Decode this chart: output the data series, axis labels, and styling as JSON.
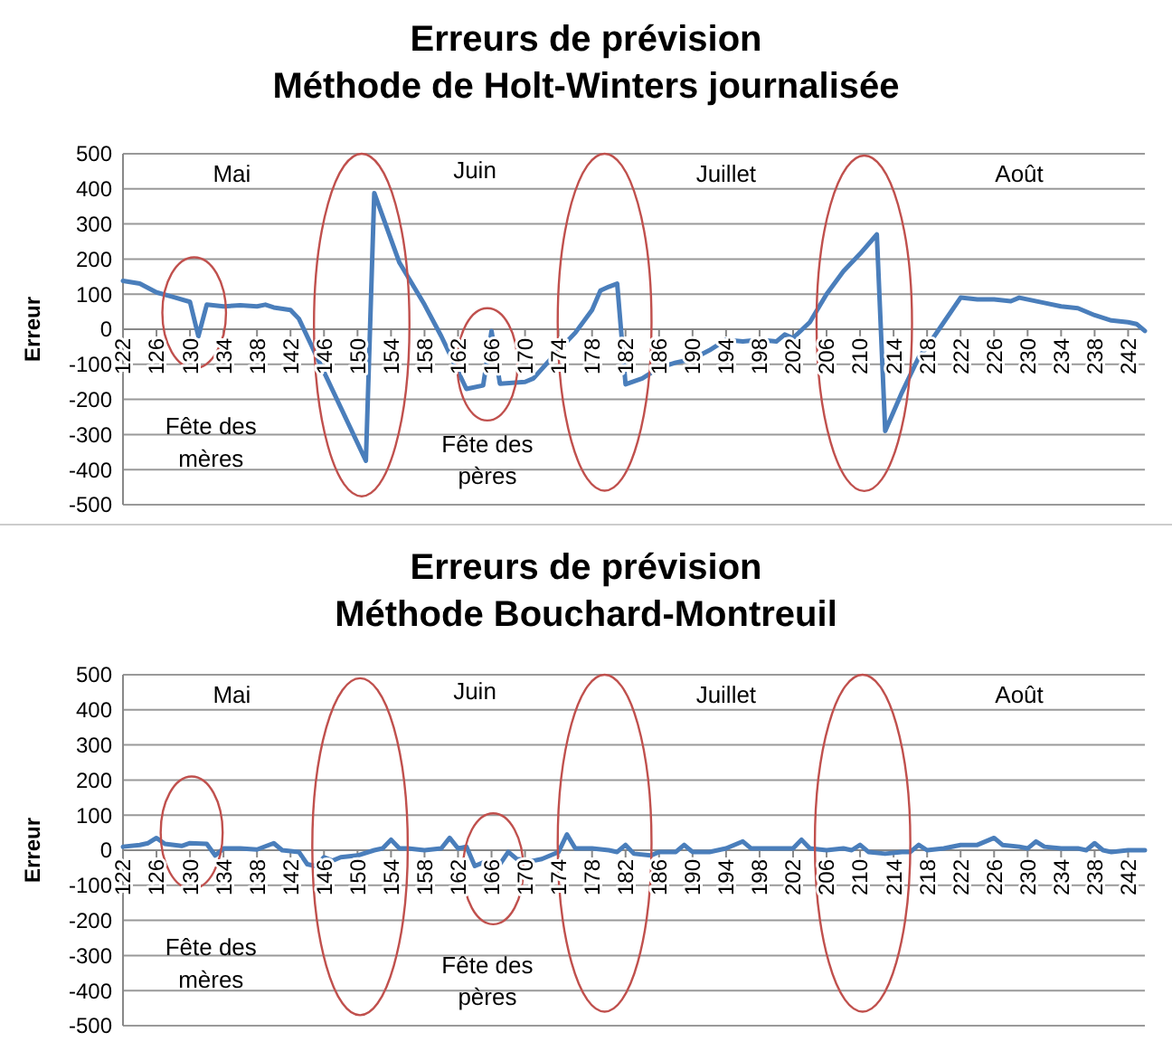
{
  "chart_data": [
    {
      "type": "line",
      "title": "Erreurs de prévision",
      "subtitle": "Méthode de Holt-Winters journalisée",
      "ylabel": "Erreur",
      "xlim": [
        122,
        244
      ],
      "xticks": [
        122,
        126,
        130,
        134,
        138,
        142,
        146,
        150,
        154,
        158,
        162,
        166,
        170,
        174,
        178,
        182,
        186,
        190,
        194,
        198,
        202,
        206,
        210,
        214,
        218,
        222,
        226,
        230,
        234,
        238,
        242
      ],
      "ylim": [
        -500,
        500
      ],
      "yticks": [
        -500,
        -400,
        -300,
        -200,
        -100,
        0,
        100,
        200,
        300,
        400,
        500
      ],
      "grid": "y",
      "marker": "none",
      "line_style": "solid",
      "annotations": [
        "Mai",
        "Juin",
        "Juillet",
        "Août",
        "Fête des mères",
        "Fête des pères"
      ],
      "series": [
        {
          "color": "#4a7ebb",
          "x": [
            122,
            124,
            126,
            128,
            130,
            131,
            132,
            134,
            136,
            138,
            139,
            140,
            142,
            143,
            151,
            152,
            155,
            158,
            160,
            163,
            165,
            166,
            167,
            170,
            171,
            174,
            176,
            178,
            179,
            180,
            181,
            182,
            184,
            186,
            188,
            190,
            192,
            194,
            196,
            198,
            200,
            201,
            202,
            204,
            206,
            208,
            210,
            212,
            213,
            215,
            217,
            218,
            220,
            222,
            224,
            226,
            228,
            229,
            232,
            234,
            236,
            238,
            240,
            242,
            243,
            244
          ],
          "values": [
            138,
            130,
            105,
            92,
            78,
            -20,
            70,
            65,
            68,
            65,
            70,
            62,
            55,
            30,
            -375,
            388,
            190,
            70,
            -20,
            -170,
            -160,
            -5,
            -155,
            -150,
            -140,
            -60,
            -10,
            55,
            110,
            121,
            130,
            -157,
            -140,
            -110,
            -95,
            -85,
            -60,
            -30,
            -35,
            -30,
            -35,
            -15,
            -25,
            20,
            100,
            165,
            215,
            270,
            -290,
            -180,
            -80,
            -50,
            20,
            90,
            85,
            85,
            80,
            90,
            75,
            65,
            60,
            40,
            25,
            20,
            15,
            -5
          ]
        }
      ]
    },
    {
      "type": "line",
      "title": "Erreurs de prévision",
      "subtitle": "Méthode Bouchard-Montreuil",
      "ylabel": "Erreur",
      "xlim": [
        122,
        244
      ],
      "xticks": [
        122,
        126,
        130,
        134,
        138,
        142,
        146,
        150,
        154,
        158,
        162,
        166,
        170,
        174,
        178,
        182,
        186,
        190,
        194,
        198,
        202,
        206,
        210,
        214,
        218,
        222,
        226,
        230,
        234,
        238,
        242
      ],
      "ylim": [
        -500,
        500
      ],
      "yticks": [
        -500,
        -400,
        -300,
        -200,
        -100,
        0,
        100,
        200,
        300,
        400,
        500
      ],
      "grid": "y",
      "marker": "none",
      "line_style": "solid",
      "annotations": [
        "Mai",
        "Juin",
        "Juillet",
        "Août",
        "Fête des mères",
        "Fête des pères"
      ],
      "series": [
        {
          "color": "#4a7ebb",
          "x": [
            122,
            124,
            125,
            126,
            127,
            129,
            130,
            132,
            133,
            134,
            136,
            138,
            140,
            141,
            143,
            144,
            145,
            146,
            147,
            148,
            150,
            152,
            153,
            154,
            155,
            156,
            158,
            160,
            161,
            162,
            163,
            164,
            165,
            166,
            167,
            168,
            169,
            171,
            172,
            174,
            175,
            176,
            178,
            180,
            181,
            182,
            183,
            185,
            186,
            188,
            189,
            190,
            192,
            194,
            196,
            197,
            199,
            201,
            202,
            203,
            204,
            206,
            208,
            209,
            210,
            211,
            213,
            215,
            216,
            217,
            218,
            220,
            222,
            224,
            226,
            227,
            229,
            230,
            231,
            232,
            234,
            236,
            237,
            238,
            239,
            240,
            242,
            244
          ],
          "values": [
            10,
            15,
            20,
            35,
            18,
            12,
            20,
            18,
            -15,
            5,
            5,
            2,
            20,
            0,
            -5,
            -40,
            -45,
            -20,
            -30,
            -20,
            -15,
            0,
            5,
            30,
            5,
            5,
            0,
            5,
            35,
            5,
            10,
            -45,
            -35,
            -35,
            -40,
            -5,
            -25,
            -30,
            -25,
            -5,
            45,
            5,
            5,
            0,
            -5,
            15,
            -10,
            -15,
            -5,
            -5,
            15,
            -5,
            -5,
            5,
            25,
            5,
            5,
            5,
            5,
            30,
            5,
            0,
            5,
            0,
            15,
            -5,
            -10,
            -5,
            -5,
            15,
            0,
            5,
            15,
            15,
            35,
            15,
            10,
            5,
            25,
            10,
            5,
            5,
            0,
            20,
            0,
            -5,
            0,
            0
          ]
        }
      ]
    }
  ]
}
